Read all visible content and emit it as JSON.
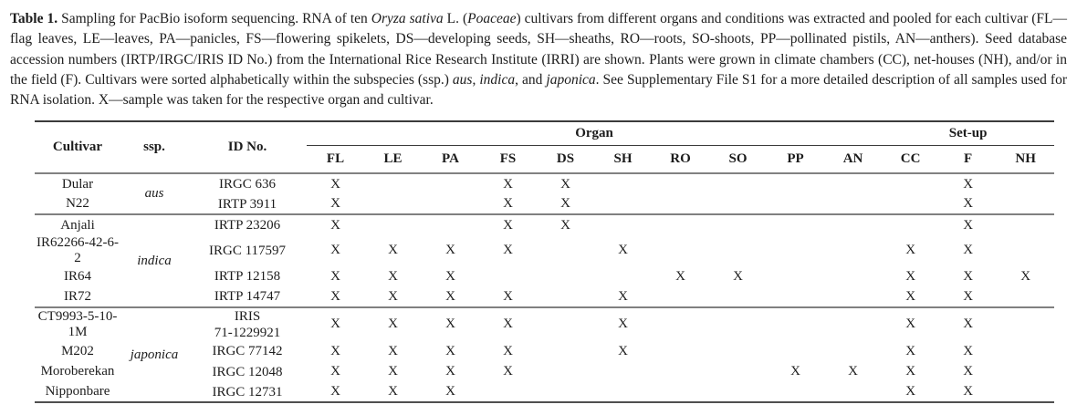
{
  "colors": {
    "background": "#ffffff",
    "text": "#1c1c1c",
    "rule_dark": "#3b3b3b",
    "rule_gray": "#808080"
  },
  "caption": {
    "segments": [
      {
        "text": "Table 1.",
        "bold": true
      },
      {
        "text": " Sampling for PacBio isoform sequencing. RNA of ten "
      },
      {
        "text": "Oryza sativa",
        "italic": true
      },
      {
        "text": " L. ("
      },
      {
        "text": "Poaceae",
        "italic": true
      },
      {
        "text": ") cultivars from different organs and conditions was extracted and pooled for each cultivar (FL—flag leaves, LE—leaves, PA—panicles, FS—flowering spikelets, DS—developing seeds, SH—sheaths, RO—roots, SO-shoots, PP—pollinated pistils, AN—anthers). Seed database accession numbers (IRTP/IRGC/IRIS ID No.) from the International Rice Research Institute (IRRI) are shown. Plants were grown in climate chambers (CC), net-houses (NH), and/or in the field (F). Cultivars were sorted alphabetically within the subspecies (ssp.) "
      },
      {
        "text": "aus",
        "italic": true
      },
      {
        "text": ", "
      },
      {
        "text": "indica",
        "italic": true
      },
      {
        "text": ", and "
      },
      {
        "text": "japonica",
        "italic": true
      },
      {
        "text": ". See Supplementary File S1 for a more detailed description of all samples used for RNA isolation. X—sample was taken for the respective organ and cultivar."
      }
    ]
  },
  "table": {
    "header": {
      "cultivar": "Cultivar",
      "ssp": "ssp.",
      "id_no": "ID No.",
      "organ_group": "Organ",
      "setup_group": "Set-up",
      "organ_columns": [
        "FL",
        "LE",
        "PA",
        "FS",
        "DS",
        "SH",
        "RO",
        "SO",
        "PP",
        "AN"
      ],
      "setup_columns": [
        "CC",
        "F",
        "NH"
      ]
    },
    "mark": "X",
    "groups": [
      {
        "ssp": "aus",
        "rows": [
          {
            "cultivar": "Dular",
            "id": "IRGC 636",
            "marks": [
              "X",
              "",
              "",
              "X",
              "X",
              "",
              "",
              "",
              "",
              "",
              "",
              "X",
              ""
            ]
          },
          {
            "cultivar": "N22",
            "id": "IRTP 3911",
            "marks": [
              "X",
              "",
              "",
              "X",
              "X",
              "",
              "",
              "",
              "",
              "",
              "",
              "X",
              ""
            ]
          }
        ]
      },
      {
        "ssp": "indica",
        "rows": [
          {
            "cultivar": "Anjali",
            "id": "IRTP 23206",
            "marks": [
              "X",
              "",
              "",
              "X",
              "X",
              "",
              "",
              "",
              "",
              "",
              "",
              "X",
              ""
            ]
          },
          {
            "cultivar": "IR62266-42-6-2",
            "id": "IRGC 117597",
            "marks": [
              "X",
              "X",
              "X",
              "X",
              "",
              "X",
              "",
              "",
              "",
              "",
              "X",
              "X",
              ""
            ]
          },
          {
            "cultivar": "IR64",
            "id": "IRTP 12158",
            "marks": [
              "X",
              "X",
              "X",
              "",
              "",
              "",
              "X",
              "X",
              "",
              "",
              "X",
              "X",
              "X"
            ]
          },
          {
            "cultivar": "IR72",
            "id": "IRTP 14747",
            "marks": [
              "X",
              "X",
              "X",
              "X",
              "",
              "X",
              "",
              "",
              "",
              "",
              "X",
              "X",
              ""
            ]
          }
        ]
      },
      {
        "ssp": "japonica",
        "rows": [
          {
            "cultivar": "CT9993-5-10-1M",
            "id": "IRIS\n71-1229921",
            "marks": [
              "X",
              "X",
              "X",
              "X",
              "",
              "X",
              "",
              "",
              "",
              "",
              "X",
              "X",
              ""
            ]
          },
          {
            "cultivar": "M202",
            "id": "IRGC 77142",
            "marks": [
              "X",
              "X",
              "X",
              "X",
              "",
              "X",
              "",
              "",
              "",
              "",
              "X",
              "X",
              ""
            ]
          },
          {
            "cultivar": "Moroberekan",
            "id": "IRGC 12048",
            "marks": [
              "X",
              "X",
              "X",
              "X",
              "",
              "",
              "",
              "",
              "X",
              "X",
              "X",
              "X",
              ""
            ]
          },
          {
            "cultivar": "Nipponbare",
            "id": "IRGC 12731",
            "marks": [
              "X",
              "X",
              "X",
              "",
              "",
              "",
              "",
              "",
              "",
              "",
              "X",
              "X",
              ""
            ]
          }
        ]
      }
    ]
  }
}
